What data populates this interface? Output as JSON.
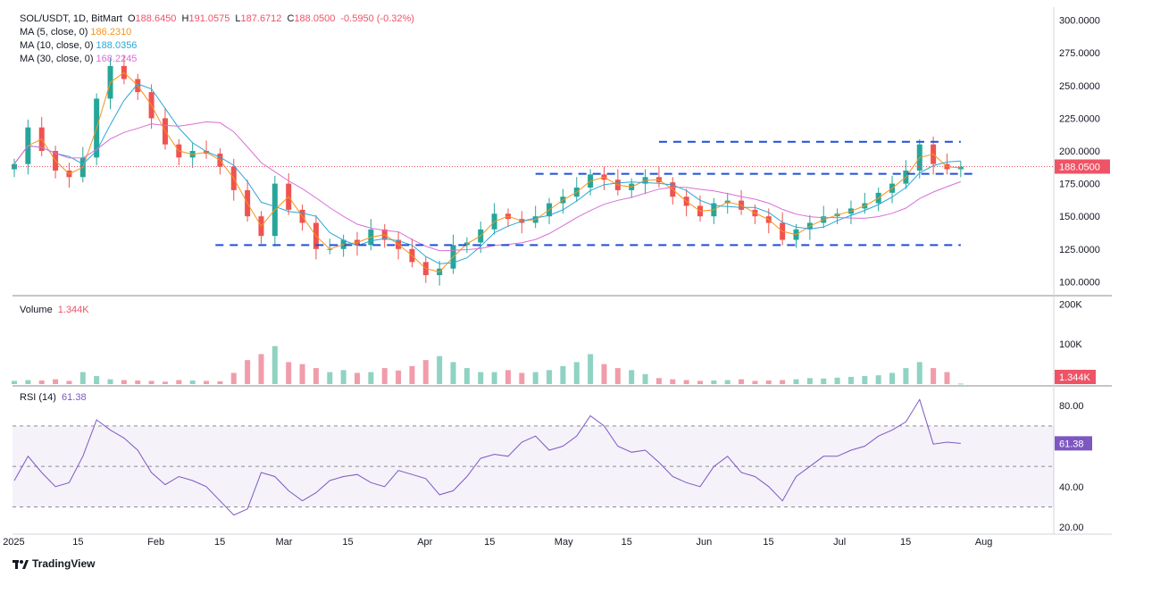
{
  "header": {
    "symbol": "SOL/USDT, 1D, BitMart",
    "open_label": "O",
    "open": "188.6450",
    "high_label": "H",
    "high": "191.0575",
    "low_label": "L",
    "low": "187.6712",
    "close_label": "C",
    "close": "188.0500",
    "change": "-0.5950 (-0.32%)"
  },
  "ma_legend": [
    {
      "label": "MA (5, close, 0)",
      "value": "186.2310",
      "color": "#f7931a"
    },
    {
      "label": "MA (10, close, 0)",
      "value": "188.0356",
      "color": "#2aa7d6"
    },
    {
      "label": "MA (30, close, 0)",
      "value": "168.2245",
      "color": "#d86fd6"
    }
  ],
  "volume_legend": {
    "label": "Volume",
    "value": "1.344K"
  },
  "rsi_legend": {
    "label": "RSI (14)",
    "value": "61.38"
  },
  "price_axis_ticks": [
    "300.0000",
    "275.0000",
    "250.0000",
    "225.0000",
    "200.0000",
    "175.0000",
    "150.0000",
    "125.0000",
    "100.0000"
  ],
  "price_badge": "188.0500",
  "volume_axis_ticks": [
    "200K",
    "100K"
  ],
  "volume_badge": "1.344K",
  "rsi_axis_ticks": [
    "80.00",
    "60.00",
    "40.00",
    "20.00"
  ],
  "rsi_badge": "61.38",
  "time_axis_ticks": [
    "2025",
    "15",
    "Feb",
    "15",
    "Mar",
    "15",
    "Apr",
    "15",
    "May",
    "15",
    "Jun",
    "15",
    "Jul",
    "15",
    "Aug"
  ],
  "brand": "TradingView",
  "colors": {
    "up": "#26a69a",
    "down": "#ef5350",
    "up_vol": "#8fd3c2",
    "down_vol": "#f19cab",
    "level": "#1f4fd8",
    "rsi": "#7e57c2",
    "badge": "#ef5366",
    "rsi_badge": "#7e57c2"
  },
  "chart_data": {
    "type": "candlestick",
    "x": [
      "2025-01-01",
      "2025-01-04",
      "2025-01-07",
      "2025-01-10",
      "2025-01-13",
      "2025-01-16",
      "2025-01-19",
      "2025-01-22",
      "2025-01-25",
      "2025-01-28",
      "2025-01-31",
      "2025-02-03",
      "2025-02-06",
      "2025-02-09",
      "2025-02-12",
      "2025-02-15",
      "2025-02-18",
      "2025-02-21",
      "2025-02-24",
      "2025-02-27",
      "2025-03-02",
      "2025-03-05",
      "2025-03-08",
      "2025-03-11",
      "2025-03-14",
      "2025-03-17",
      "2025-03-20",
      "2025-03-23",
      "2025-03-26",
      "2025-03-29",
      "2025-04-01",
      "2025-04-04",
      "2025-04-07",
      "2025-04-10",
      "2025-04-13",
      "2025-04-16",
      "2025-04-19",
      "2025-04-22",
      "2025-04-25",
      "2025-04-28",
      "2025-05-01",
      "2025-05-04",
      "2025-05-07",
      "2025-05-10",
      "2025-05-13",
      "2025-05-16",
      "2025-05-19",
      "2025-05-22",
      "2025-05-25",
      "2025-05-28",
      "2025-05-31",
      "2025-06-03",
      "2025-06-06",
      "2025-06-09",
      "2025-06-12",
      "2025-06-15",
      "2025-06-18",
      "2025-06-21",
      "2025-06-24",
      "2025-06-27",
      "2025-06-30",
      "2025-07-03",
      "2025-07-06",
      "2025-07-09",
      "2025-07-12",
      "2025-07-15",
      "2025-07-18",
      "2025-07-21",
      "2025-07-24",
      "2025-07-27"
    ],
    "close": [
      190,
      218,
      200,
      185,
      180,
      195,
      240,
      265,
      255,
      245,
      225,
      205,
      195,
      200,
      198,
      188,
      170,
      150,
      135,
      175,
      155,
      145,
      125,
      125,
      132,
      128,
      140,
      132,
      125,
      115,
      105,
      110,
      128,
      130,
      140,
      152,
      148,
      145,
      150,
      160,
      165,
      172,
      182,
      178,
      170,
      175,
      180,
      176,
      165,
      158,
      150,
      160,
      162,
      155,
      150,
      145,
      132,
      140,
      145,
      150,
      152,
      156,
      160,
      168,
      175,
      185,
      205,
      190,
      186,
      188
    ],
    "volume_k": [
      8,
      10,
      9,
      12,
      8,
      30,
      20,
      12,
      10,
      9,
      8,
      6,
      10,
      9,
      8,
      7,
      28,
      60,
      75,
      95,
      55,
      50,
      40,
      30,
      35,
      28,
      30,
      40,
      34,
      45,
      60,
      70,
      55,
      40,
      30,
      30,
      35,
      28,
      30,
      35,
      45,
      55,
      75,
      50,
      40,
      35,
      25,
      15,
      12,
      10,
      8,
      9,
      10,
      12,
      8,
      9,
      10,
      12,
      15,
      14,
      16,
      18,
      20,
      22,
      28,
      40,
      55,
      40,
      30,
      1.344
    ],
    "rsi": [
      43,
      55,
      47,
      40,
      42,
      55,
      73,
      68,
      64,
      58,
      47,
      41,
      45,
      43,
      40,
      33,
      26,
      29,
      47,
      45,
      38,
      33,
      37,
      43,
      45,
      46,
      42,
      40,
      48,
      46,
      44,
      36,
      38,
      45,
      54,
      56,
      55,
      62,
      65,
      58,
      60,
      65,
      75,
      70,
      60,
      57,
      58,
      52,
      45,
      42,
      40,
      50,
      55,
      47,
      45,
      40,
      33,
      45,
      50,
      55,
      55,
      58,
      60,
      65,
      68,
      72,
      83,
      61,
      62,
      61.38
    ],
    "ylim": [
      90,
      310
    ],
    "volume_ylim": [
      0,
      210
    ],
    "rsi_ylim": [
      17,
      88
    ],
    "rsi_levels": [
      70,
      50,
      30
    ],
    "support_resistance": [
      {
        "level": 207,
        "x_start": "2025-05-22",
        "x_end": "2025-07-27"
      },
      {
        "level": 182.5,
        "x_start": "2025-04-25",
        "x_end": "2025-07-30"
      },
      {
        "level": 128,
        "x_start": "2025-02-14",
        "x_end": "2025-07-27"
      }
    ]
  }
}
